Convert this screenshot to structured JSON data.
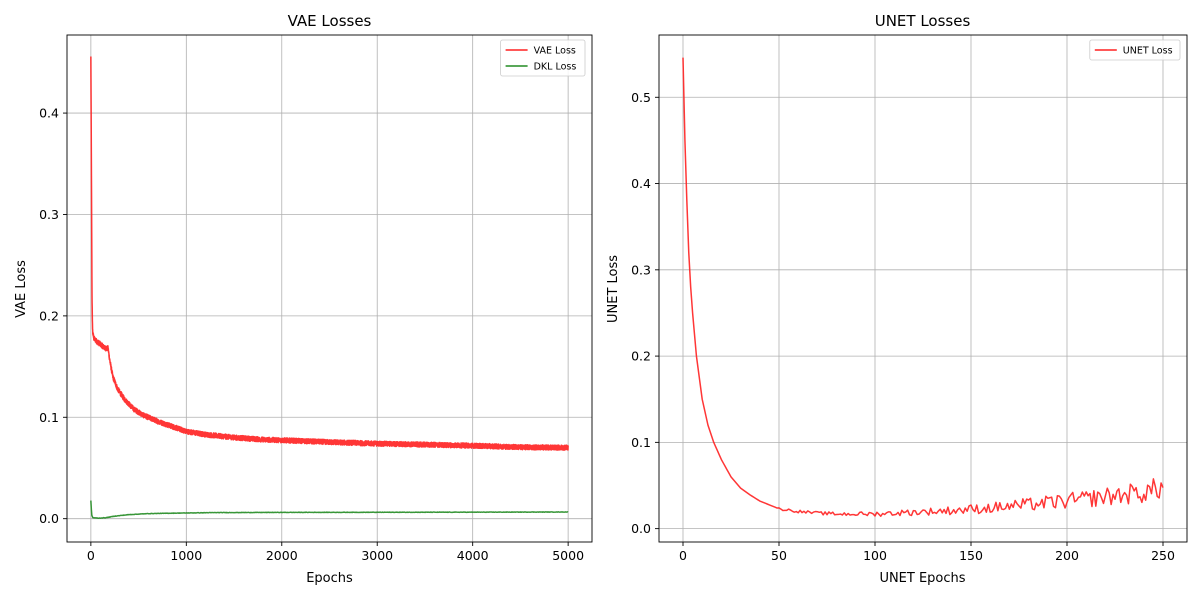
{
  "figure": {
    "background": "#ffffff"
  },
  "chart_data": [
    {
      "type": "line",
      "title": "VAE Losses",
      "xlabel": "Epochs",
      "ylabel": "VAE Loss",
      "xlim": [
        -250,
        5250
      ],
      "ylim": [
        -0.023,
        0.477
      ],
      "xticks": [
        0,
        1000,
        2000,
        3000,
        4000,
        5000
      ],
      "yticks": [
        0.0,
        0.1,
        0.2,
        0.3,
        0.4
      ],
      "xtick_labels": [
        "0",
        "1000",
        "2000",
        "3000",
        "4000",
        "5000"
      ],
      "ytick_labels": [
        "0.0",
        "0.1",
        "0.2",
        "0.3",
        "0.4"
      ],
      "grid": true,
      "legend_position": "top-right",
      "series": [
        {
          "name": "VAE Loss",
          "color": "#ff2020",
          "x_start": 0,
          "x_end": 5000,
          "samples": 5001,
          "noise": 0.0025,
          "points": [
            [
              0,
              0.455
            ],
            [
              4,
              0.38
            ],
            [
              8,
              0.3
            ],
            [
              12,
              0.22
            ],
            [
              18,
              0.185
            ],
            [
              30,
              0.178
            ],
            [
              60,
              0.175
            ],
            [
              100,
              0.172
            ],
            [
              150,
              0.168
            ],
            [
              180,
              0.168
            ],
            [
              200,
              0.155
            ],
            [
              230,
              0.14
            ],
            [
              280,
              0.128
            ],
            [
              350,
              0.118
            ],
            [
              450,
              0.108
            ],
            [
              550,
              0.102
            ],
            [
              700,
              0.096
            ],
            [
              850,
              0.091
            ],
            [
              1000,
              0.086
            ],
            [
              1200,
              0.083
            ],
            [
              1500,
              0.08
            ],
            [
              1800,
              0.078
            ],
            [
              2100,
              0.077
            ],
            [
              2500,
              0.0755
            ],
            [
              3000,
              0.074
            ],
            [
              3500,
              0.073
            ],
            [
              4000,
              0.072
            ],
            [
              4500,
              0.0705
            ],
            [
              5000,
              0.07
            ]
          ]
        },
        {
          "name": "DKL Loss",
          "color": "#228b22",
          "x_start": 0,
          "x_end": 5000,
          "samples": 1001,
          "noise": 0.0002,
          "points": [
            [
              0,
              0.018
            ],
            [
              8,
              0.004
            ],
            [
              20,
              0.001
            ],
            [
              80,
              0.0005
            ],
            [
              160,
              0.001
            ],
            [
              250,
              0.0025
            ],
            [
              400,
              0.004
            ],
            [
              600,
              0.005
            ],
            [
              900,
              0.0055
            ],
            [
              1300,
              0.006
            ],
            [
              2000,
              0.0062
            ],
            [
              3000,
              0.0063
            ],
            [
              4000,
              0.0064
            ],
            [
              5000,
              0.0066
            ]
          ]
        }
      ]
    },
    {
      "type": "line",
      "title": "UNET Losses",
      "xlabel": "UNET Epochs",
      "ylabel": "UNET Loss",
      "xlim": [
        -12.5,
        262.5
      ],
      "ylim": [
        -0.0155,
        0.5722
      ],
      "xticks": [
        0,
        50,
        100,
        150,
        200,
        250
      ],
      "yticks": [
        0.0,
        0.1,
        0.2,
        0.3,
        0.4,
        0.5
      ],
      "xtick_labels": [
        "0",
        "50",
        "100",
        "150",
        "200",
        "250"
      ],
      "ytick_labels": [
        "0.0",
        "0.1",
        "0.2",
        "0.3",
        "0.4",
        "0.5"
      ],
      "grid": true,
      "legend_position": "top-right",
      "series": [
        {
          "name": "UNET Loss",
          "color": "#ff2020",
          "x_start": 0,
          "x_end": 250,
          "samples": 251,
          "noise": "growing",
          "points": [
            [
              0,
              0.546
            ],
            [
              1,
              0.45
            ],
            [
              2,
              0.38
            ],
            [
              3,
              0.32
            ],
            [
              4,
              0.28
            ],
            [
              5,
              0.25
            ],
            [
              7,
              0.2
            ],
            [
              10,
              0.15
            ],
            [
              13,
              0.12
            ],
            [
              16,
              0.1
            ],
            [
              20,
              0.08
            ],
            [
              25,
              0.06
            ],
            [
              30,
              0.047
            ],
            [
              35,
              0.039
            ],
            [
              40,
              0.032
            ],
            [
              50,
              0.023
            ],
            [
              60,
              0.02
            ],
            [
              70,
              0.018
            ],
            [
              80,
              0.017
            ],
            [
              100,
              0.017
            ],
            [
              120,
              0.019
            ],
            [
              140,
              0.021
            ],
            [
              160,
              0.024
            ],
            [
              180,
              0.028
            ],
            [
              200,
              0.032
            ],
            [
              220,
              0.037
            ],
            [
              240,
              0.042
            ],
            [
              250,
              0.048
            ]
          ]
        }
      ]
    }
  ]
}
